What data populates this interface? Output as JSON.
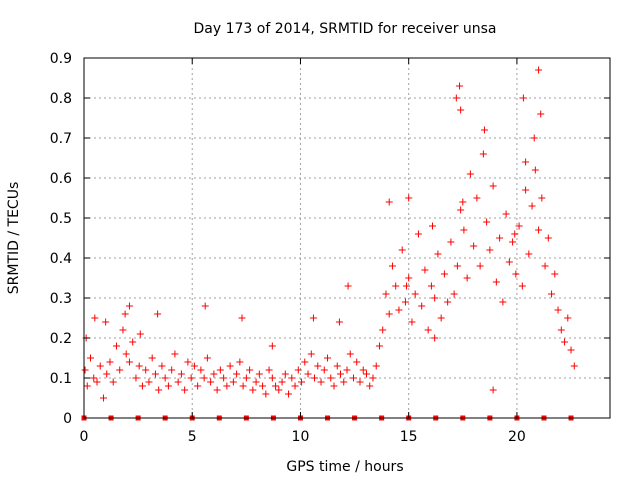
{
  "chart_data": {
    "type": "scatter",
    "title": "Day 173 of 2014, SRMTID for receiver unsa",
    "xlabel": "GPS time / hours",
    "ylabel": "SRMTID / TECUs",
    "xlim": [
      0,
      24.3
    ],
    "ylim": [
      0,
      0.9
    ],
    "xticks": [
      0,
      5,
      10,
      15,
      20
    ],
    "xtick_labels": [
      "0",
      "5",
      "10",
      "15",
      "20"
    ],
    "yticks": [
      0,
      0.1,
      0.2,
      0.3,
      0.4,
      0.5,
      0.6,
      0.7,
      0.8,
      0.9
    ],
    "ytick_labels": [
      "0",
      "0.1",
      "0.2",
      "0.3",
      "0.4",
      "0.5",
      "0.6",
      "0.7",
      "0.8",
      "0.9"
    ],
    "grid": true,
    "marker_color": "#ff0000",
    "series": [
      {
        "name": "SRMTID",
        "marker": "plus",
        "x": [
          0.05,
          0.15,
          0.3,
          0.45,
          0.6,
          0.75,
          0.9,
          1.05,
          1.2,
          1.35,
          1.5,
          1.65,
          1.8,
          1.95,
          2.1,
          2.25,
          2.4,
          2.55,
          2.7,
          2.85,
          3.0,
          3.15,
          3.3,
          3.45,
          3.6,
          3.75,
          3.9,
          4.05,
          4.2,
          4.35,
          4.5,
          4.65,
          4.8,
          4.95,
          5.1,
          5.25,
          5.4,
          5.55,
          5.7,
          5.85,
          6.0,
          6.15,
          6.3,
          6.45,
          6.6,
          6.75,
          6.9,
          7.05,
          7.2,
          7.35,
          7.5,
          7.65,
          7.8,
          7.95,
          8.1,
          8.25,
          8.4,
          8.55,
          8.7,
          8.85,
          9.0,
          9.15,
          9.3,
          9.45,
          9.6,
          9.75,
          9.9,
          10.05,
          10.2,
          10.35,
          10.5,
          10.65,
          10.8,
          10.95,
          11.1,
          11.25,
          11.4,
          11.55,
          11.7,
          11.85,
          12.0,
          12.15,
          12.3,
          12.45,
          12.6,
          12.75,
          12.9,
          13.05,
          13.2,
          13.35,
          13.5,
          13.65,
          13.8,
          13.95,
          14.1,
          14.25,
          14.4,
          14.55,
          14.7,
          14.85,
          15.0,
          15.15,
          15.3,
          15.45,
          15.6,
          15.75,
          15.9,
          16.05,
          16.2,
          16.35,
          16.5,
          16.65,
          16.8,
          16.95,
          17.1,
          17.25,
          17.4,
          17.55,
          17.7,
          17.85,
          18.0,
          18.15,
          18.3,
          18.45,
          18.6,
          18.75,
          18.9,
          19.05,
          19.2,
          19.35,
          19.5,
          19.65,
          19.8,
          19.95,
          20.1,
          20.25,
          20.4,
          20.55,
          20.7,
          20.85,
          21.0,
          21.15,
          21.3,
          21.45,
          21.6,
          21.75,
          21.9,
          22.05,
          22.2,
          22.35,
          22.5,
          22.65,
          0.1,
          0.5,
          1.0,
          1.9,
          2.1,
          2.6,
          3.4,
          5.6,
          7.3,
          8.7,
          10.6,
          11.8,
          12.2,
          14.1,
          15.0,
          16.1,
          17.2,
          17.35,
          18.5,
          19.9,
          20.3,
          20.4,
          20.8,
          21.0,
          21.1,
          17.4,
          18.9,
          17.5,
          14.9,
          16.2
        ],
        "y": [
          0.12,
          0.08,
          0.15,
          0.1,
          0.09,
          0.13,
          0.05,
          0.11,
          0.14,
          0.09,
          0.18,
          0.12,
          0.22,
          0.16,
          0.14,
          0.19,
          0.1,
          0.13,
          0.08,
          0.12,
          0.09,
          0.15,
          0.11,
          0.07,
          0.13,
          0.1,
          0.08,
          0.12,
          0.16,
          0.09,
          0.11,
          0.07,
          0.14,
          0.1,
          0.13,
          0.08,
          0.12,
          0.1,
          0.15,
          0.09,
          0.11,
          0.07,
          0.12,
          0.1,
          0.08,
          0.13,
          0.09,
          0.11,
          0.14,
          0.08,
          0.1,
          0.12,
          0.07,
          0.09,
          0.11,
          0.08,
          0.06,
          0.12,
          0.1,
          0.08,
          0.07,
          0.09,
          0.11,
          0.06,
          0.1,
          0.08,
          0.12,
          0.09,
          0.14,
          0.11,
          0.16,
          0.1,
          0.13,
          0.09,
          0.12,
          0.15,
          0.1,
          0.08,
          0.13,
          0.11,
          0.09,
          0.12,
          0.16,
          0.1,
          0.14,
          0.09,
          0.12,
          0.11,
          0.08,
          0.1,
          0.13,
          0.18,
          0.22,
          0.31,
          0.26,
          0.38,
          0.33,
          0.27,
          0.42,
          0.29,
          0.35,
          0.24,
          0.31,
          0.46,
          0.28,
          0.37,
          0.22,
          0.33,
          0.3,
          0.41,
          0.25,
          0.36,
          0.29,
          0.44,
          0.31,
          0.38,
          0.52,
          0.47,
          0.35,
          0.61,
          0.43,
          0.55,
          0.38,
          0.66,
          0.49,
          0.42,
          0.58,
          0.34,
          0.45,
          0.29,
          0.51,
          0.39,
          0.44,
          0.36,
          0.48,
          0.33,
          0.57,
          0.41,
          0.53,
          0.62,
          0.47,
          0.55,
          0.38,
          0.45,
          0.31,
          0.36,
          0.27,
          0.22,
          0.19,
          0.25,
          0.17,
          0.13,
          0.2,
          0.25,
          0.24,
          0.26,
          0.28,
          0.21,
          0.26,
          0.28,
          0.25,
          0.18,
          0.25,
          0.24,
          0.33,
          0.54,
          0.55,
          0.48,
          0.8,
          0.83,
          0.72,
          0.46,
          0.8,
          0.64,
          0.7,
          0.87,
          0.76,
          0.77,
          0.07,
          0.54,
          0.33,
          0.2
        ],
        "baseline_markers_x": [
          0,
          1.25,
          2.5,
          3.75,
          5,
          6.25,
          7.5,
          8.75,
          10,
          11.25,
          12.5,
          13.75,
          15,
          16.25,
          17.5,
          18.75,
          20,
          21.25,
          22.5
        ]
      }
    ]
  }
}
